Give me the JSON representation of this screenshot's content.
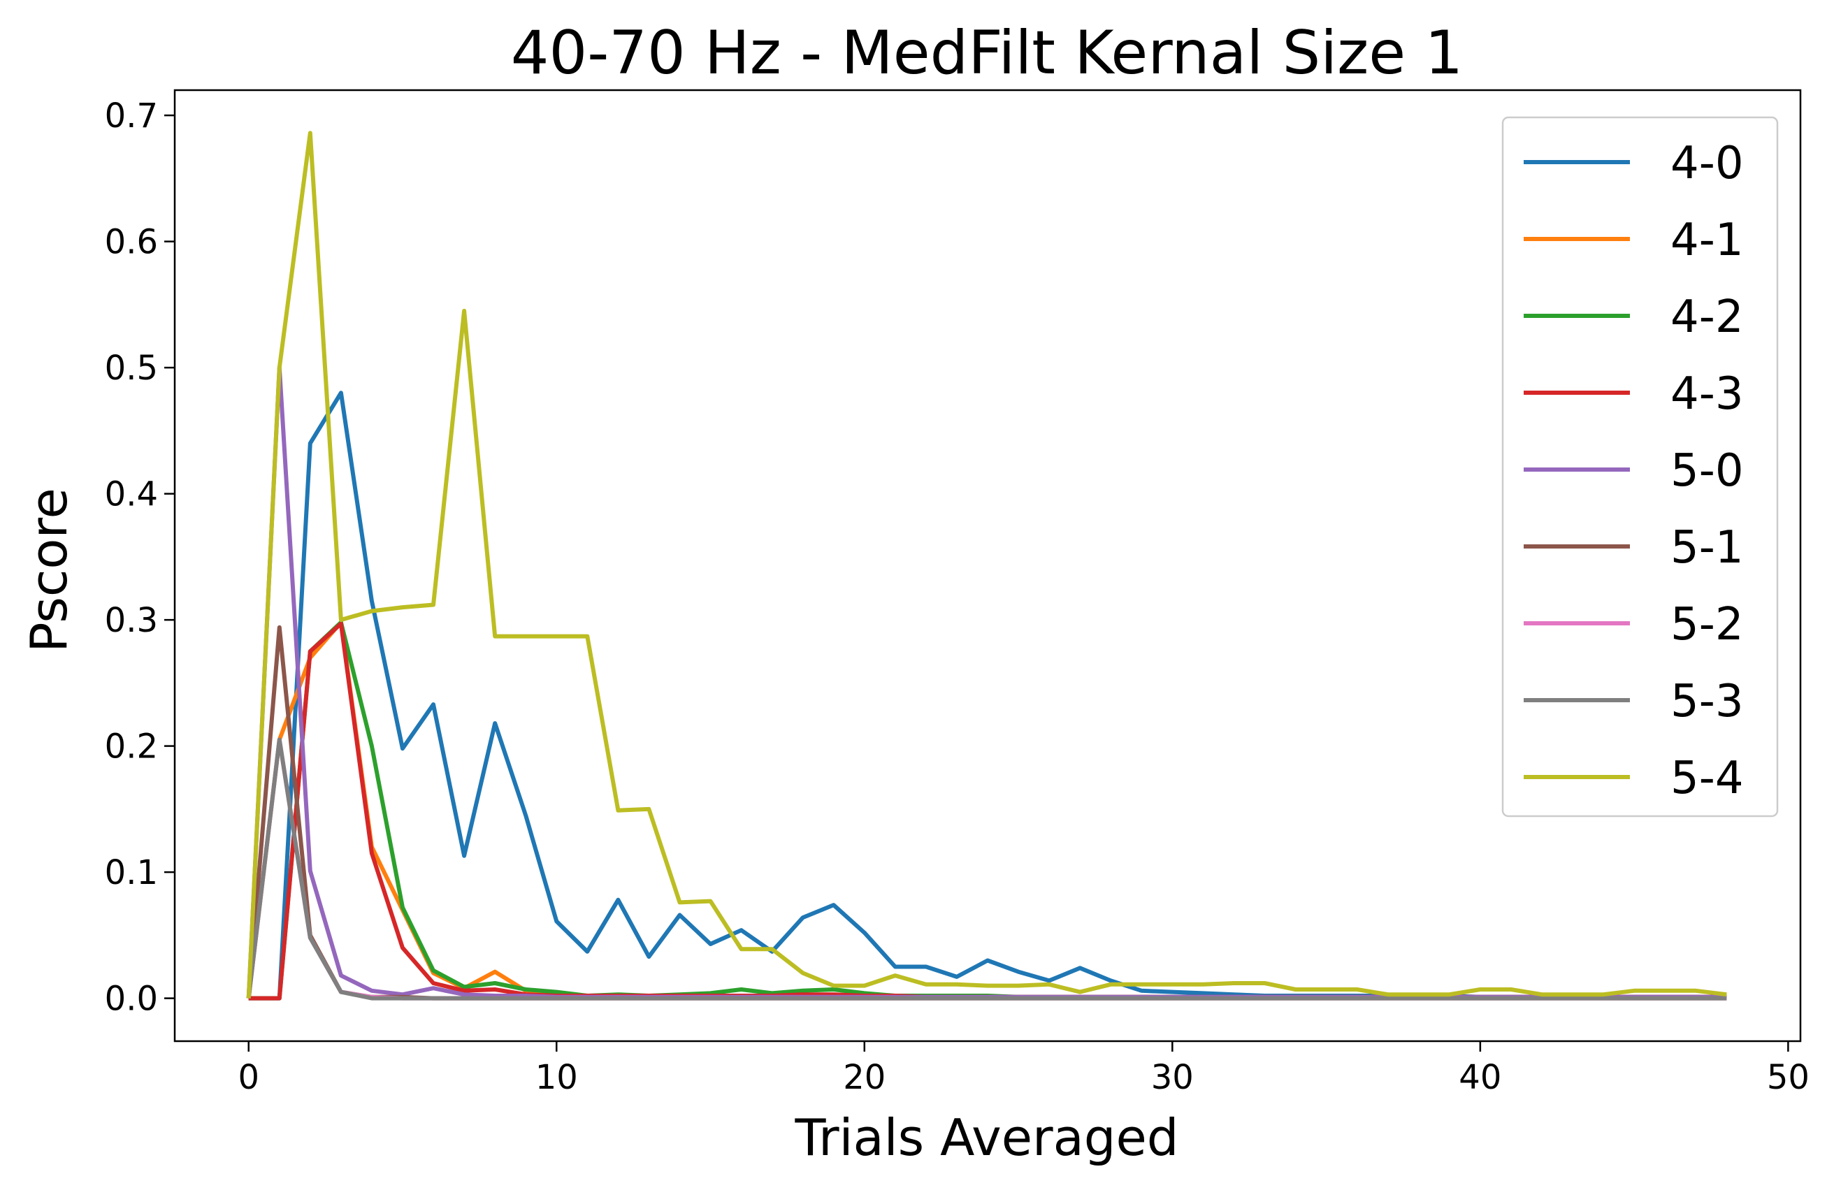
{
  "chart_data": {
    "type": "line",
    "title": "40-70 Hz - MedFilt Kernal Size 1",
    "xlabel": "Trials Averaged",
    "ylabel": "Pscore",
    "xlim": [
      -2.4,
      50.4
    ],
    "ylim": [
      -0.034,
      0.72
    ],
    "xticks": [
      0,
      10,
      20,
      30,
      40,
      50
    ],
    "xtick_labels": [
      "0",
      "10",
      "20",
      "30",
      "40",
      "50"
    ],
    "yticks": [
      0.0,
      0.1,
      0.2,
      0.3,
      0.4,
      0.5,
      0.6,
      0.7
    ],
    "ytick_labels": [
      "0.0",
      "0.1",
      "0.2",
      "0.3",
      "0.4",
      "0.5",
      "0.6",
      "0.7"
    ],
    "grid": false,
    "legend_position": "top-right",
    "x": [
      0,
      1,
      2,
      3,
      4,
      5,
      6,
      7,
      8,
      9,
      10,
      11,
      12,
      13,
      14,
      15,
      16,
      17,
      18,
      19,
      20,
      21,
      22,
      23,
      24,
      25,
      26,
      27,
      28,
      29,
      30,
      31,
      32,
      33,
      34,
      35,
      36,
      37,
      38,
      39,
      40,
      41,
      42,
      43,
      44,
      45,
      46,
      47,
      48
    ],
    "series": [
      {
        "name": "4-0",
        "color": "#1f77b4",
        "values": [
          0.0,
          0.0,
          0.44,
          0.48,
          0.315,
          0.198,
          0.233,
          0.113,
          0.218,
          0.145,
          0.061,
          0.037,
          0.078,
          0.033,
          0.066,
          0.043,
          0.054,
          0.037,
          0.064,
          0.074,
          0.052,
          0.025,
          0.025,
          0.017,
          0.03,
          0.021,
          0.014,
          0.024,
          0.014,
          0.006,
          0.005,
          0.004,
          0.003,
          0.002,
          0.002,
          0.002,
          0.002,
          0.002,
          0.002,
          0.002,
          0.001,
          0.001,
          0.001,
          0.001,
          0.001,
          0.001,
          0.001,
          0.001,
          0.001
        ]
      },
      {
        "name": "4-1",
        "color": "#ff7f0e",
        "values": [
          0.0,
          0.205,
          0.27,
          0.298,
          0.12,
          0.07,
          0.02,
          0.008,
          0.021,
          0.006,
          0.004,
          0.002,
          0.002,
          0.001,
          0.001,
          0.001,
          0.001,
          0.001,
          0.001,
          0.001,
          0.001,
          0.001,
          0.001,
          0.001,
          0.001,
          0.001,
          0.001,
          0.001,
          0.001,
          0.001,
          0.001,
          0.001,
          0.001,
          0.001,
          0.001,
          0.001,
          0.001,
          0.001,
          0.001,
          0.001,
          0.001,
          0.001,
          0.001,
          0.001,
          0.001,
          0.001,
          0.001,
          0.001,
          0.001
        ]
      },
      {
        "name": "4-2",
        "color": "#2ca02c",
        "values": [
          0.0,
          0.0,
          0.275,
          0.298,
          0.2,
          0.072,
          0.022,
          0.009,
          0.012,
          0.007,
          0.005,
          0.002,
          0.003,
          0.002,
          0.003,
          0.004,
          0.007,
          0.004,
          0.006,
          0.007,
          0.004,
          0.002,
          0.002,
          0.002,
          0.002,
          0.001,
          0.001,
          0.001,
          0.001,
          0.001,
          0.001,
          0.001,
          0.001,
          0.001,
          0.001,
          0.001,
          0.001,
          0.001,
          0.001,
          0.001,
          0.001,
          0.001,
          0.001,
          0.001,
          0.001,
          0.001,
          0.001,
          0.001,
          0.001
        ]
      },
      {
        "name": "4-3",
        "color": "#d62728",
        "values": [
          0.0,
          0.0,
          0.275,
          0.297,
          0.115,
          0.04,
          0.012,
          0.006,
          0.007,
          0.003,
          0.002,
          0.002,
          0.002,
          0.002,
          0.002,
          0.002,
          0.002,
          0.002,
          0.003,
          0.003,
          0.002,
          0.002,
          0.001,
          0.001,
          0.001,
          0.001,
          0.001,
          0.001,
          0.001,
          0.001,
          0.001,
          0.001,
          0.001,
          0.001,
          0.001,
          0.001,
          0.001,
          0.001,
          0.001,
          0.001,
          0.001,
          0.001,
          0.001,
          0.001,
          0.001,
          0.001,
          0.001,
          0.001,
          0.001
        ]
      },
      {
        "name": "5-0",
        "color": "#9467bd",
        "values": [
          0.0,
          0.5,
          0.101,
          0.018,
          0.006,
          0.003,
          0.008,
          0.003,
          0.002,
          0.002,
          0.001,
          0.001,
          0.001,
          0.001,
          0.001,
          0.001,
          0.001,
          0.001,
          0.001,
          0.001,
          0.001,
          0.001,
          0.001,
          0.001,
          0.001,
          0.001,
          0.001,
          0.001,
          0.001,
          0.001,
          0.001,
          0.001,
          0.001,
          0.001,
          0.001,
          0.001,
          0.001,
          0.001,
          0.001,
          0.001,
          0.001,
          0.001,
          0.001,
          0.001,
          0.001,
          0.001,
          0.001,
          0.001,
          0.001
        ]
      },
      {
        "name": "5-1",
        "color": "#8c564b",
        "values": [
          0.0,
          0.294,
          0.05,
          0.005,
          0.001,
          0.001,
          0.0,
          0.0,
          0.0,
          0.0,
          0.0,
          0.0,
          0.0,
          0.0,
          0.0,
          0.0,
          0.0,
          0.0,
          0.0,
          0.0,
          0.0,
          0.0,
          0.0,
          0.0,
          0.0,
          0.0,
          0.0,
          0.0,
          0.0,
          0.0,
          0.0,
          0.0,
          0.0,
          0.0,
          0.0,
          0.0,
          0.0,
          0.0,
          0.0,
          0.0,
          0.0,
          0.0,
          0.0,
          0.0,
          0.0,
          0.0,
          0.0,
          0.0,
          0.0
        ]
      },
      {
        "name": "5-2",
        "color": "#e377c2",
        "values": [
          0.0,
          0.205,
          0.048,
          0.005,
          0.001,
          0.0,
          0.0,
          0.0,
          0.0,
          0.0,
          0.0,
          0.0,
          0.0,
          0.0,
          0.0,
          0.0,
          0.0,
          0.0,
          0.0,
          0.0,
          0.0,
          0.0,
          0.0,
          0.0,
          0.0,
          0.0,
          0.0,
          0.0,
          0.0,
          0.0,
          0.0,
          0.0,
          0.0,
          0.0,
          0.0,
          0.0,
          0.0,
          0.0,
          0.0,
          0.0,
          0.0,
          0.0,
          0.0,
          0.0,
          0.0,
          0.0,
          0.0,
          0.0,
          0.0
        ]
      },
      {
        "name": "5-3",
        "color": "#7f7f7f",
        "values": [
          0.0,
          0.205,
          0.048,
          0.005,
          0.0,
          0.0,
          0.0,
          0.0,
          0.0,
          0.0,
          0.0,
          0.0,
          0.0,
          0.0,
          0.0,
          0.0,
          0.0,
          0.0,
          0.0,
          0.0,
          0.0,
          0.0,
          0.0,
          0.0,
          0.0,
          0.0,
          0.0,
          0.0,
          0.0,
          0.0,
          0.0,
          0.0,
          0.0,
          0.0,
          0.0,
          0.0,
          0.0,
          0.0,
          0.0,
          0.0,
          0.0,
          0.0,
          0.0,
          0.0,
          0.0,
          0.0,
          0.0,
          0.0,
          0.0
        ]
      },
      {
        "name": "5-4",
        "color": "#bcbd22",
        "values": [
          0.0,
          0.5,
          0.686,
          0.3,
          0.307,
          0.31,
          0.312,
          0.545,
          0.287,
          0.287,
          0.287,
          0.287,
          0.149,
          0.15,
          0.076,
          0.077,
          0.039,
          0.039,
          0.02,
          0.01,
          0.01,
          0.018,
          0.011,
          0.011,
          0.01,
          0.01,
          0.011,
          0.005,
          0.011,
          0.011,
          0.011,
          0.011,
          0.012,
          0.012,
          0.007,
          0.007,
          0.007,
          0.003,
          0.003,
          0.003,
          0.007,
          0.007,
          0.003,
          0.003,
          0.003,
          0.006,
          0.006,
          0.006,
          0.003
        ]
      }
    ]
  }
}
